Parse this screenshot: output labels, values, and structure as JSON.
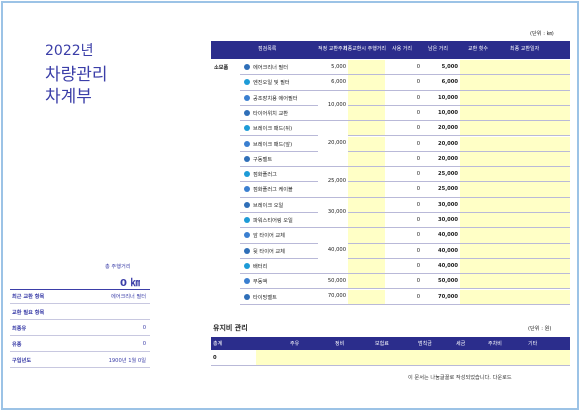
{
  "header": {
    "year": "2022년",
    "title_line1": "차량관리",
    "title_line2": "차계부"
  },
  "summary": {
    "label": "총 주행거리",
    "value": "0 ㎞",
    "rows": [
      {
        "label": "최근 교환 항목",
        "value": "에어크리너 필터"
      },
      {
        "label": "교환 필요 항목"
      },
      {
        "label": "최종유",
        "value": "0"
      },
      {
        "label": "유종",
        "value": "0"
      },
      {
        "label": "구입년도",
        "value": "1900년 1월 0일"
      }
    ]
  },
  "maintenance_table": {
    "unit": "(단위 : ㎞)",
    "headers": [
      "점검목록",
      "적정 교환주기",
      "최종교환시 주행거리",
      "사용 거리",
      "남은 거리",
      "교환 횟수",
      "최종 교환일자"
    ],
    "category": "소모품",
    "groups": [
      {
        "cycle": "5,000",
        "items": [
          {
            "name": "에어크리너 필터",
            "used": "0",
            "remaining": "5,000"
          }
        ]
      },
      {
        "cycle": "6,000",
        "items": [
          {
            "name": "엔진오일 및 필터",
            "used": "0",
            "remaining": "6,000"
          }
        ]
      },
      {
        "cycle": "10,000",
        "items": [
          {
            "name": "공조장치용 에어필터",
            "used": "0",
            "remaining": "10,000"
          },
          {
            "name": "타이어위치 교환",
            "used": "0",
            "remaining": "10,000"
          }
        ]
      },
      {
        "cycle": "20,000",
        "items": [
          {
            "name": "브레이크 패드(뒤)",
            "used": "0",
            "remaining": "20,000"
          },
          {
            "name": "브레이크 패드(앞)",
            "used": "0",
            "remaining": "20,000"
          },
          {
            "name": "구동벨트",
            "used": "0",
            "remaining": "20,000"
          }
        ]
      },
      {
        "cycle": "25,000",
        "items": [
          {
            "name": "점화플러그",
            "used": "0",
            "remaining": "25,000"
          },
          {
            "name": "점화플러그 케이블",
            "used": "0",
            "remaining": "25,000"
          }
        ]
      },
      {
        "cycle": "30,000",
        "items": [
          {
            "name": "브레이크 오일",
            "used": "0",
            "remaining": "30,000"
          },
          {
            "name": "파워스티어링 오일",
            "used": "0",
            "remaining": "30,000"
          }
        ]
      },
      {
        "cycle": "40,000",
        "items": [
          {
            "name": "앞 타이어 교체",
            "used": "0",
            "remaining": "40,000"
          },
          {
            "name": "뒷 타이어 교체",
            "used": "0",
            "remaining": "40,000"
          },
          {
            "name": "배터리",
            "used": "0",
            "remaining": "40,000"
          }
        ]
      },
      {
        "cycle": "50,000",
        "items": [
          {
            "name": "부동액",
            "used": "0",
            "remaining": "50,000"
          }
        ]
      },
      {
        "cycle": "70,000",
        "items": [
          {
            "name": "타이밍벨트",
            "used": "0",
            "remaining": "70,000"
          }
        ]
      }
    ]
  },
  "cost_table": {
    "title": "유지비 관리",
    "unit": "(단위 : 원)",
    "headers": [
      "총계",
      "주유",
      "정비",
      "보험료",
      "범칙금",
      "세금",
      "주차비",
      "기타"
    ],
    "total": "0"
  },
  "footer": "이 문서는 나눔글꼴로 작성되었습니다. 다운로드"
}
